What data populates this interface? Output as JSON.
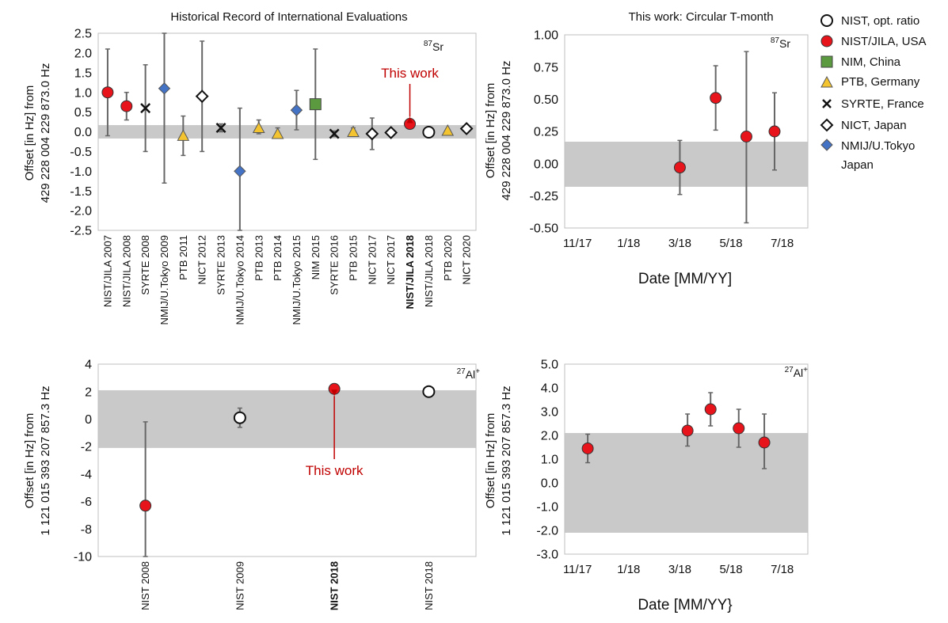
{
  "legend": {
    "items": [
      {
        "label": "NIST, opt. ratio",
        "marker": "circle",
        "fill": "#ffffff"
      },
      {
        "label": "NIST/JILA, USA",
        "marker": "circle",
        "fill": "#e8141c"
      },
      {
        "label": "NIM, China",
        "marker": "square",
        "fill": "#5c9a3f"
      },
      {
        "label": "PTB, Germany",
        "marker": "triangle",
        "fill": "#f4c430"
      },
      {
        "label": "SYRTE, France",
        "marker": "cross",
        "fill": "#111111"
      },
      {
        "label": "NICT, Japan",
        "marker": "diamond",
        "fill": "#ffffff"
      },
      {
        "label": "NMIJ/U.Tokyo",
        "label2": "Japan",
        "marker": "diamond",
        "fill": "#4472c4"
      }
    ]
  },
  "colors": {
    "red": "#e8141c",
    "green": "#5c9a3f",
    "yellow": "#f4c430",
    "blue": "#4472c4",
    "band": "#c9c9c9",
    "errorbar": "#666666",
    "annotation": "#c00000"
  },
  "chart_data": [
    {
      "type": "scatter",
      "title": "Historical Record of International Evaluations",
      "ylabel_line1": "Offset [in Hz] from",
      "ylabel_line2": "429 228 004 229 873.0 Hz",
      "species": "Sr",
      "species_mass": "87",
      "ylim": [
        -2.5,
        2.5
      ],
      "ytick_labels": [
        "2.5",
        "2.0",
        "1.5",
        "1.0",
        "0.5",
        "0.0",
        "-0.5",
        "-1.0",
        "-1.5",
        "-2.0",
        "-2.5"
      ],
      "yticks": [
        2.5,
        2.0,
        1.5,
        1.0,
        0.5,
        0.0,
        -0.5,
        -1.0,
        -1.5,
        -2.0,
        -2.5
      ],
      "band": [
        -0.17,
        0.17
      ],
      "annotation": {
        "text": "This work",
        "target_index": 16
      },
      "points": [
        {
          "label": "NIST/JILA 2007",
          "marker": "circle",
          "color": "red",
          "y": 1.0,
          "err_lo": -0.1,
          "err_hi": 2.1,
          "bold": false
        },
        {
          "label": "NIST/JILA 2008",
          "marker": "circle",
          "color": "red",
          "y": 0.65,
          "err_lo": 0.3,
          "err_hi": 1.0,
          "bold": false
        },
        {
          "label": "SYRTE 2008",
          "marker": "cross",
          "color": "black",
          "y": 0.6,
          "err_lo": -0.5,
          "err_hi": 1.7,
          "bold": false
        },
        {
          "label": "NMIJ/U.Tokyo 2009",
          "marker": "diamond",
          "color": "blue",
          "y": 1.1,
          "err_lo": -1.3,
          "err_hi": 2.5,
          "bold": false
        },
        {
          "label": "PTB 2011",
          "marker": "triangle",
          "color": "yellow",
          "y": -0.1,
          "err_lo": -0.6,
          "err_hi": 0.4,
          "bold": false
        },
        {
          "label": "NICT 2012",
          "marker": "diamond",
          "color": "white",
          "y": 0.9,
          "err_lo": -0.5,
          "err_hi": 2.3,
          "bold": false
        },
        {
          "label": "SYRTE 2013",
          "marker": "cross",
          "color": "black",
          "y": 0.1,
          "err_lo": 0.0,
          "err_hi": 0.2,
          "bold": false
        },
        {
          "label": "NMIJ/U.Tokyo 2014",
          "marker": "diamond",
          "color": "blue",
          "y": -1.0,
          "err_lo": -2.5,
          "err_hi": 0.6,
          "bold": false
        },
        {
          "label": "PTB 2013",
          "marker": "triangle",
          "color": "yellow",
          "y": 0.1,
          "err_lo": -0.05,
          "err_hi": 0.3,
          "bold": false
        },
        {
          "label": "PTB 2014",
          "marker": "triangle",
          "color": "yellow",
          "y": -0.05,
          "err_lo": -0.15,
          "err_hi": 0.1,
          "bold": false
        },
        {
          "label": "NMIJ/U.Tokyo 2015",
          "marker": "diamond",
          "color": "blue",
          "y": 0.55,
          "err_lo": 0.05,
          "err_hi": 1.05,
          "bold": false
        },
        {
          "label": "NIM 2015",
          "marker": "square",
          "color": "green",
          "y": 0.7,
          "err_lo": -0.7,
          "err_hi": 2.1,
          "bold": false
        },
        {
          "label": "SYRTE 2016",
          "marker": "cross",
          "color": "black",
          "y": -0.05,
          "err_lo": -0.12,
          "err_hi": 0.02,
          "bold": false
        },
        {
          "label": "PTB 2015",
          "marker": "triangle",
          "color": "yellow",
          "y": 0.0,
          "err_lo": -0.05,
          "err_hi": 0.1,
          "bold": false
        },
        {
          "label": "NICT 2017",
          "marker": "diamond",
          "color": "white",
          "y": -0.05,
          "err_lo": -0.45,
          "err_hi": 0.35,
          "bold": false
        },
        {
          "label": "NICT 2017",
          "marker": "diamond",
          "color": "white",
          "y": -0.02,
          "err_lo": -0.1,
          "err_hi": 0.05,
          "bold": false
        },
        {
          "label": "NIST/JILA 2018",
          "marker": "circle",
          "color": "red",
          "y": 0.2,
          "err_lo": 0.1,
          "err_hi": 0.3,
          "bold": true
        },
        {
          "label": "NIST/JILA 2018",
          "marker": "circle",
          "color": "white",
          "y": -0.01,
          "err_lo": -0.05,
          "err_hi": 0.03,
          "bold": false
        },
        {
          "label": "PTB 2020",
          "marker": "triangle",
          "color": "yellow",
          "y": 0.03,
          "err_lo": 0.0,
          "err_hi": 0.07,
          "bold": false
        },
        {
          "label": "NICT 2020",
          "marker": "diamond",
          "color": "white",
          "y": 0.08,
          "err_lo": 0.04,
          "err_hi": 0.12,
          "bold": false
        }
      ]
    },
    {
      "type": "scatter",
      "title": "This work: Circular T-month",
      "ylabel_line1": "Offset [in Hz] from",
      "ylabel_line2": "429 228 004 229 873.0 Hz",
      "xlabel": "Date [MM/YY]",
      "species": "Sr",
      "species_mass": "87",
      "ylim": [
        -0.5,
        1.0
      ],
      "ytick_labels": [
        "1.00",
        "0.75",
        "0.50",
        "0.25",
        "0.00",
        "-0.25",
        "-0.50"
      ],
      "yticks": [
        1.0,
        0.75,
        0.5,
        0.25,
        0.0,
        -0.25,
        -0.5
      ],
      "xtick_labels": [
        "11/17",
        "1/18",
        "3/18",
        "5/18",
        "7/18"
      ],
      "xticks": [
        0,
        2,
        4,
        6,
        8
      ],
      "band": [
        -0.18,
        0.17
      ],
      "points": [
        {
          "x": 4.0,
          "y": -0.03,
          "err_lo": -0.24,
          "err_hi": 0.18
        },
        {
          "x": 5.4,
          "y": 0.51,
          "err_lo": 0.26,
          "err_hi": 0.76
        },
        {
          "x": 6.6,
          "y": 0.21,
          "err_lo": -0.46,
          "err_hi": 0.87
        },
        {
          "x": 7.7,
          "y": 0.25,
          "err_lo": -0.05,
          "err_hi": 0.55
        }
      ]
    },
    {
      "type": "scatter",
      "ylabel_line1": "Offset [in  Hz]  from",
      "ylabel_line2": "1 121 015 393 207 857.3 Hz",
      "species": "Al",
      "species_mass": "27",
      "species_charge": "+",
      "ylim": [
        -10,
        4
      ],
      "ytick_labels": [
        "4",
        "2",
        "0",
        "-2",
        "-4",
        "-6",
        "-8",
        "-10"
      ],
      "yticks": [
        4,
        2,
        0,
        -2,
        -4,
        -6,
        -8,
        -10
      ],
      "band": [
        -2.1,
        2.1
      ],
      "annotation": {
        "text": "This work",
        "target_index": 2
      },
      "points": [
        {
          "label": "NIST 2008",
          "marker": "circle",
          "color": "red",
          "y": -6.3,
          "err_lo": -10,
          "err_hi": -0.2,
          "bold": false
        },
        {
          "label": "NIST 2009",
          "marker": "circle",
          "color": "white",
          "y": 0.1,
          "err_lo": -0.6,
          "err_hi": 0.8,
          "bold": false
        },
        {
          "label": "NIST 2018",
          "marker": "circle",
          "color": "red",
          "y": 2.2,
          "err_lo": 2.0,
          "err_hi": 2.4,
          "bold": true
        },
        {
          "label": "NIST 2018",
          "marker": "circle",
          "color": "white",
          "y": 2.0,
          "err_lo": 1.9,
          "err_hi": 2.1,
          "bold": false
        }
      ]
    },
    {
      "type": "scatter",
      "ylabel_line1": "Offset [in  Hz]  from",
      "ylabel_line2": "1 121 015 393 207 857.3 Hz",
      "xlabel": "Date [MM/YY}",
      "species": "Al",
      "species_mass": "27",
      "species_charge": "+",
      "ylim": [
        -3.0,
        5.0
      ],
      "ytick_labels": [
        "5.0",
        "4.0",
        "3.0",
        "2.0",
        "1.0",
        "0.0",
        "-1.0",
        "-2.0",
        "-3.0"
      ],
      "yticks": [
        5,
        4,
        3,
        2,
        1,
        0,
        -1,
        -2,
        -3
      ],
      "xtick_labels": [
        "11/17",
        "1/18",
        "3/18",
        "5/18",
        "7/18"
      ],
      "xticks": [
        0,
        2,
        4,
        6,
        8
      ],
      "band": [
        -2.1,
        2.1
      ],
      "points": [
        {
          "x": 0.4,
          "y": 1.45,
          "err_lo": 0.85,
          "err_hi": 2.05
        },
        {
          "x": 4.3,
          "y": 2.2,
          "err_lo": 1.55,
          "err_hi": 2.9
        },
        {
          "x": 5.2,
          "y": 3.1,
          "err_lo": 2.4,
          "err_hi": 3.8
        },
        {
          "x": 6.3,
          "y": 2.3,
          "err_lo": 1.5,
          "err_hi": 3.1
        },
        {
          "x": 7.3,
          "y": 1.7,
          "err_lo": 0.6,
          "err_hi": 2.9
        }
      ]
    }
  ]
}
